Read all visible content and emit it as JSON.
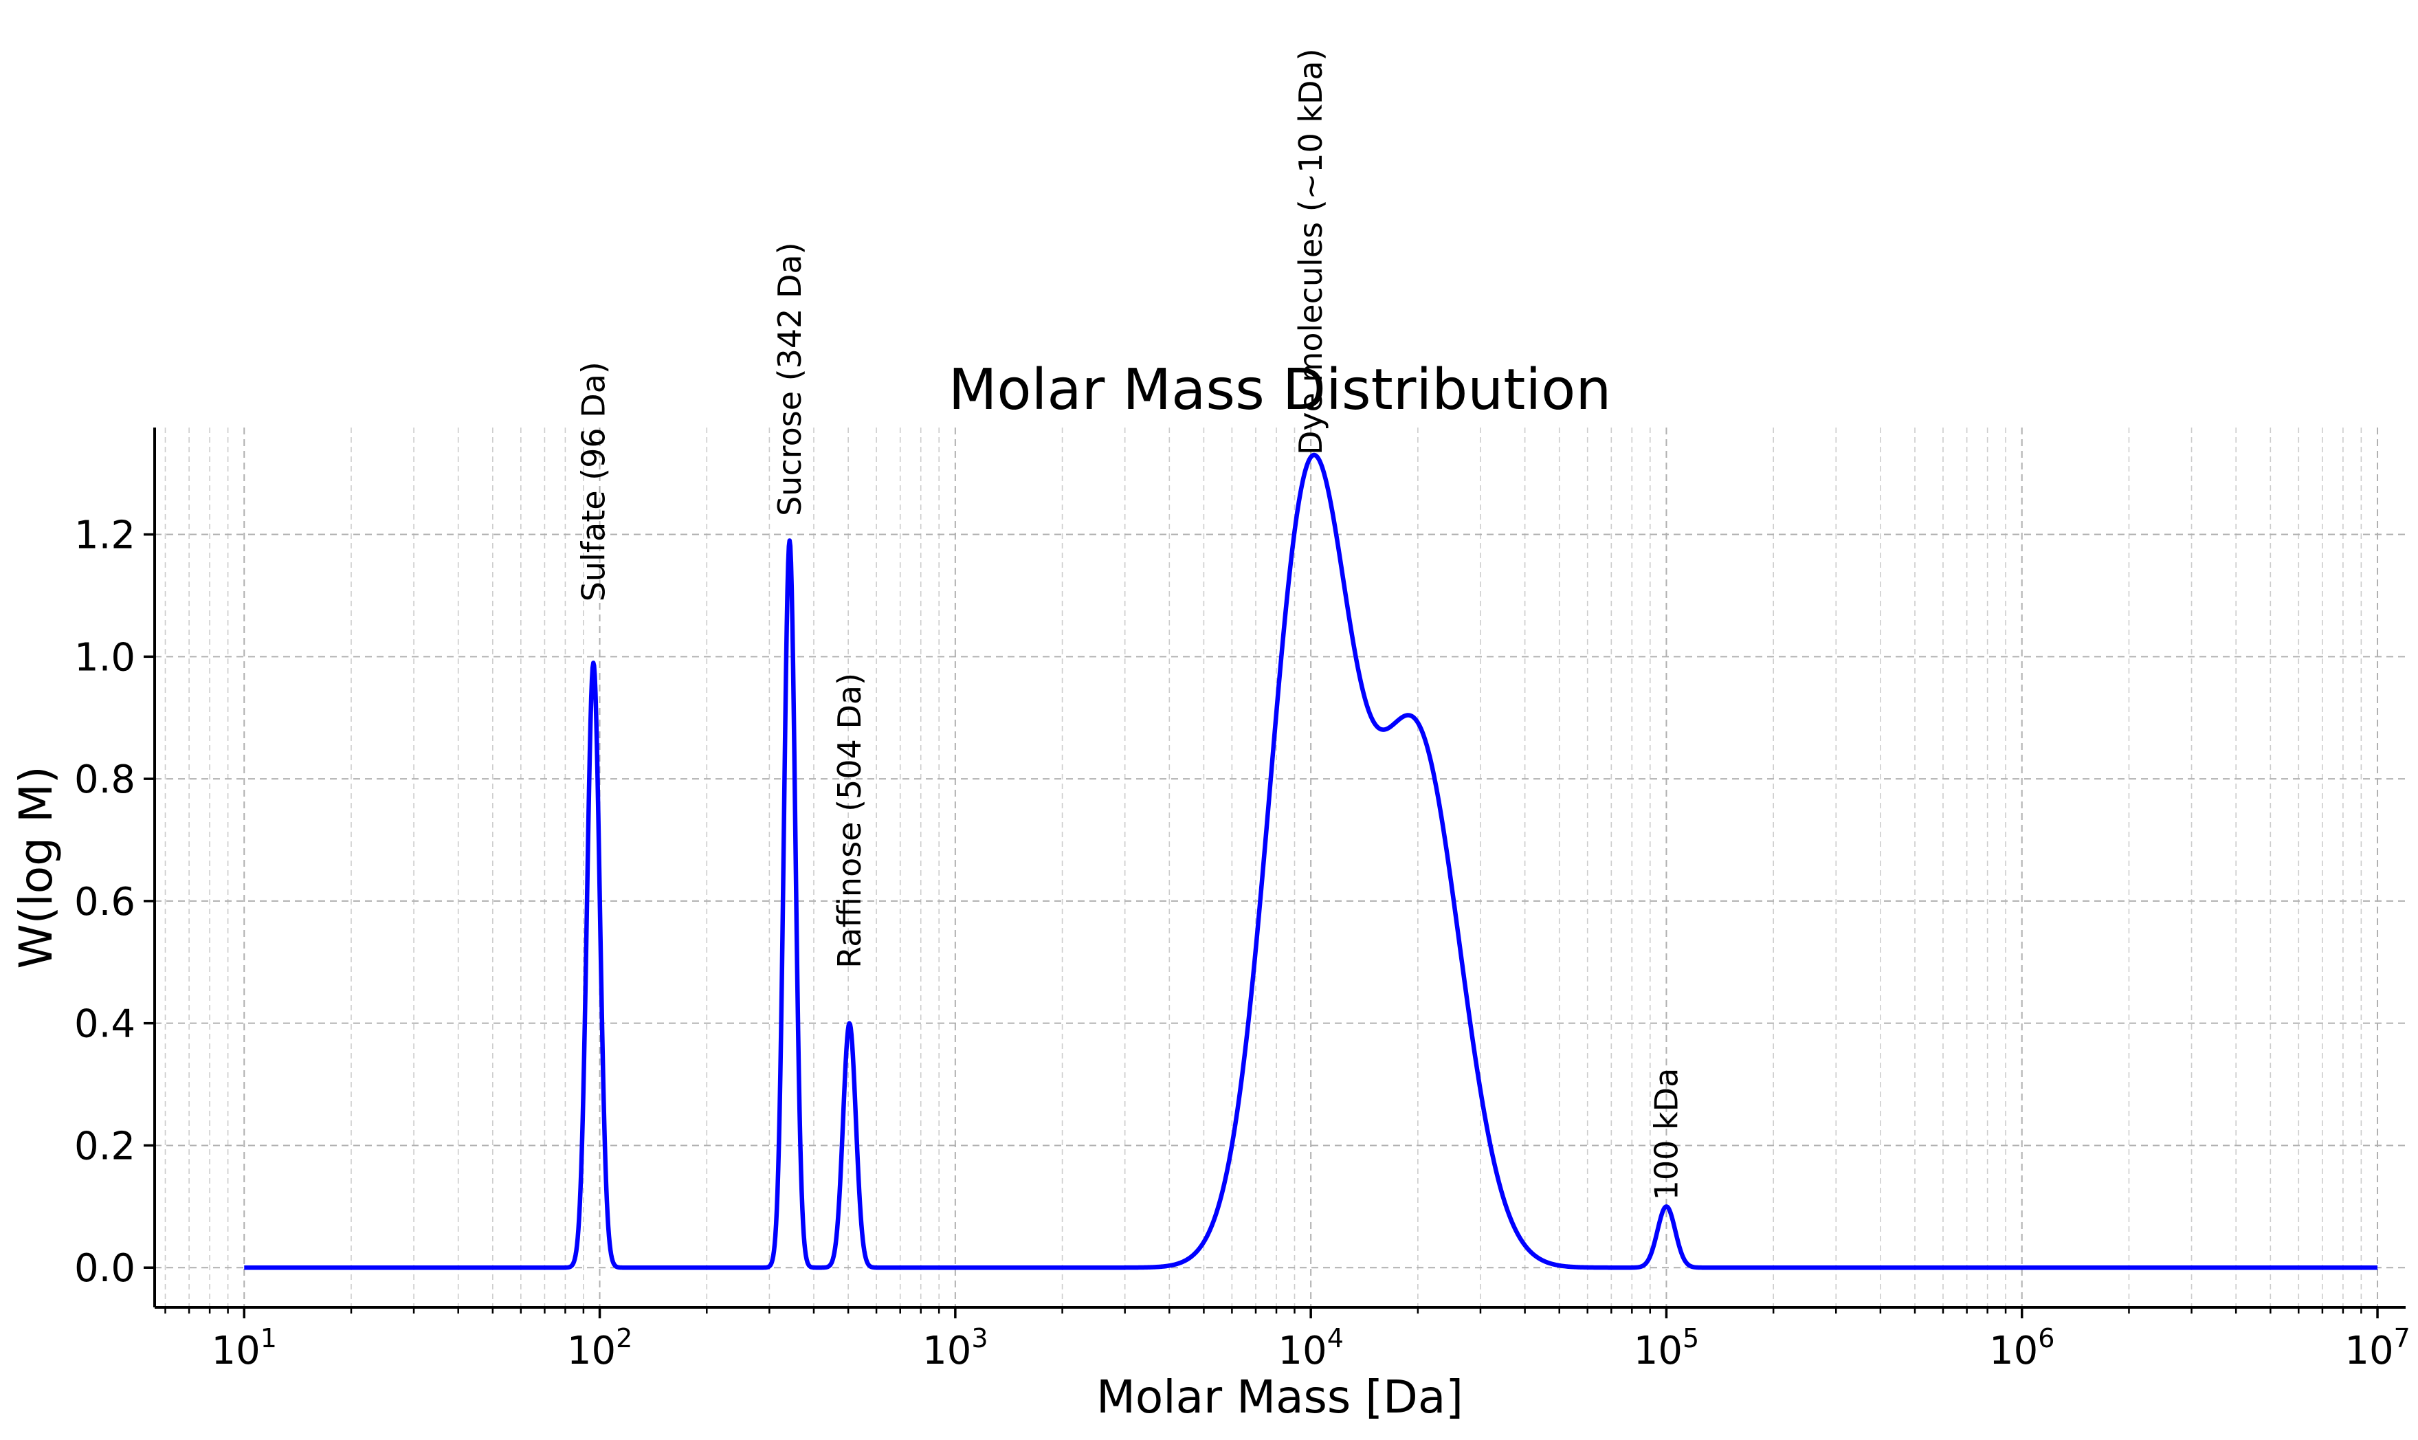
{
  "chart_data": {
    "type": "line",
    "title": "Molar Mass Distribution",
    "xlabel": "Molar Mass [Da]",
    "ylabel": "W(log M)",
    "xscale": "log",
    "xlim": [
      5.6,
      12000000
    ],
    "ylim": [
      -0.065,
      1.375
    ],
    "grid": true,
    "grid_minor": true,
    "line_color": "#0000ff",
    "x_ticks": [
      {
        "base": "10",
        "exp": "1",
        "value": 10
      },
      {
        "base": "10",
        "exp": "2",
        "value": 100
      },
      {
        "base": "10",
        "exp": "3",
        "value": 1000
      },
      {
        "base": "10",
        "exp": "4",
        "value": 10000
      },
      {
        "base": "10",
        "exp": "5",
        "value": 100000
      },
      {
        "base": "10",
        "exp": "6",
        "value": 1000000
      },
      {
        "base": "10",
        "exp": "7",
        "value": 10000000
      }
    ],
    "y_ticks": [
      {
        "label": "0.0",
        "value": 0.0
      },
      {
        "label": "0.2",
        "value": 0.2
      },
      {
        "label": "0.4",
        "value": 0.4
      },
      {
        "label": "0.6",
        "value": 0.6
      },
      {
        "label": "0.8",
        "value": 0.8
      },
      {
        "label": "1.0",
        "value": 1.0
      },
      {
        "label": "1.2",
        "value": 1.2
      }
    ],
    "x_range": [
      10,
      10000000
    ],
    "peaks": [
      {
        "center": 96,
        "height": 0.99,
        "sigma_log10": 0.018
      },
      {
        "center": 342,
        "height": 1.19,
        "sigma_log10": 0.016
      },
      {
        "center": 504,
        "height": 0.4,
        "sigma_log10": 0.018
      },
      {
        "center": 10000,
        "height": 1.29,
        "sigma_log10": 0.115
      },
      {
        "center": 20000,
        "height": 0.85,
        "sigma_log10": 0.12
      },
      {
        "center": 100000,
        "height": 0.1,
        "sigma_log10": 0.025
      }
    ],
    "annotations": [
      {
        "text": "Sulfate (96 Da)",
        "x": 96,
        "y": 1.09
      },
      {
        "text": "Sucrose (342 Da)",
        "x": 342,
        "y": 1.23
      },
      {
        "text": "Raffinose (504 Da)",
        "x": 504,
        "y": 0.49
      },
      {
        "text": "Dye molecules (~10 kDa)",
        "x": 10000,
        "y": 1.33
      },
      {
        "text": "100 kDa",
        "x": 100000,
        "y": 0.11
      }
    ]
  }
}
